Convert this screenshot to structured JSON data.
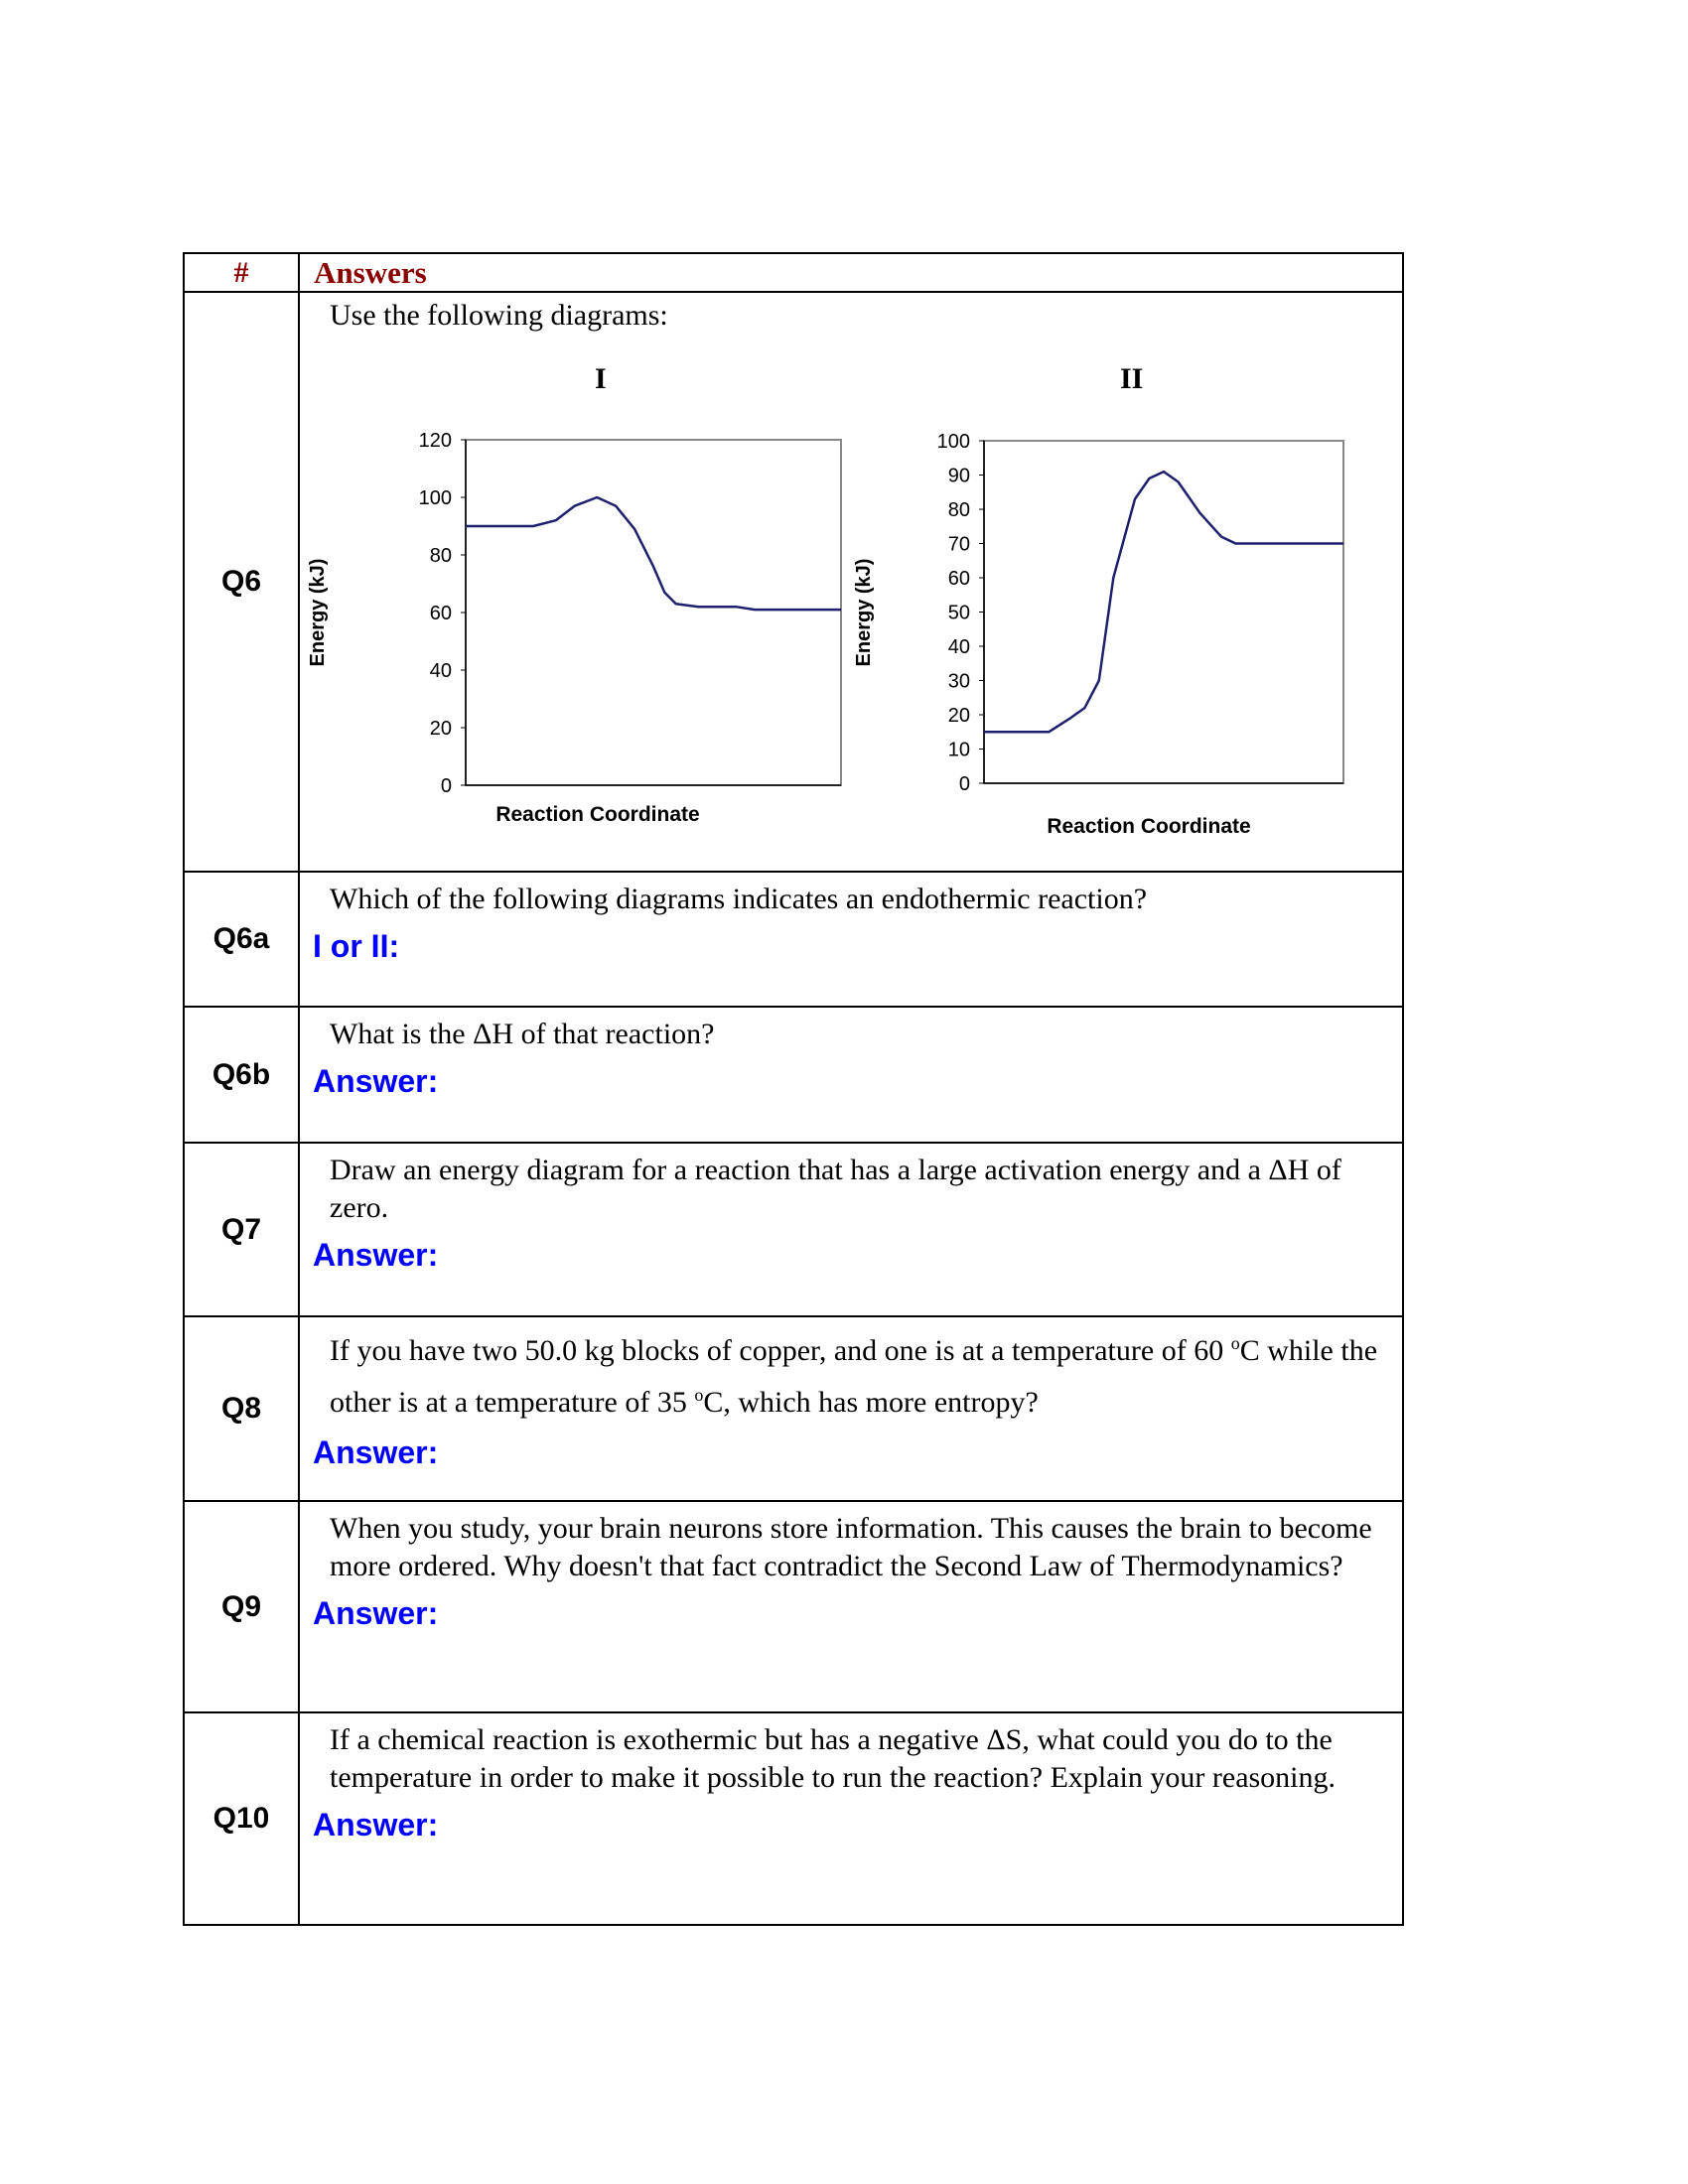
{
  "header": {
    "num_label": "#",
    "answers_label": "Answers"
  },
  "rows": [
    {
      "id": "Q6",
      "question": "Use the following diagrams:"
    },
    {
      "id": "Q6a",
      "question": "Which of the following diagrams indicates an endothermic reaction?",
      "answer_label": "I or II:"
    },
    {
      "id": "Q6b",
      "question": "What is the ΔH of that reaction?",
      "answer_label": "Answer:"
    },
    {
      "id": "Q7",
      "question": "Draw an energy diagram for a reaction that has a large activation energy and a ΔH of zero.",
      "answer_label": "Answer:"
    },
    {
      "id": "Q8",
      "question_parts": [
        "If you have two 50.0 kg blocks of copper, and one is at a temperature of 60 ",
        "o",
        "C while the other is at a temperature of 35 ",
        "o",
        "C, which has more entropy?"
      ],
      "answer_label": "Answer:"
    },
    {
      "id": "Q9",
      "question": "When you study, your brain neurons store information.  This causes the brain to become more ordered.  Why doesn't that fact contradict the Second Law of Thermodynamics?",
      "answer_label": "Answer:"
    },
    {
      "id": "Q10",
      "question": "If a chemical reaction is exothermic but has a negative ΔS, what could you do to the temperature  in order to make it possible to run the reaction? Explain your reasoning.",
      "answer_label": "Answer:"
    }
  ],
  "colors": {
    "header": "#8b0000",
    "answer": "#0000ff",
    "curve": "#1f1f6e"
  },
  "chart_data": [
    {
      "type": "line",
      "title": "I",
      "xlabel": "Reaction Coordinate",
      "ylabel": "Energy (kJ)",
      "ylim": [
        0,
        120
      ],
      "yticks": [
        0,
        20,
        40,
        60,
        80,
        100,
        120
      ],
      "x": [
        0,
        0.1,
        0.18,
        0.24,
        0.29,
        0.35,
        0.4,
        0.45,
        0.5,
        0.53,
        0.56,
        0.62,
        0.72,
        0.77,
        0.85,
        1
      ],
      "y": [
        90,
        90,
        90,
        92,
        97,
        100,
        97,
        89,
        76,
        67,
        63,
        62,
        62,
        61,
        61,
        61
      ],
      "grid": false
    },
    {
      "type": "line",
      "title": "II",
      "xlabel": "Reaction Coordinate",
      "ylabel": "Energy (kJ)",
      "ylim": [
        0,
        100
      ],
      "yticks": [
        0,
        10,
        20,
        30,
        40,
        50,
        60,
        70,
        80,
        90,
        100
      ],
      "x": [
        0,
        0.1,
        0.18,
        0.24,
        0.28,
        0.32,
        0.36,
        0.42,
        0.46,
        0.5,
        0.54,
        0.6,
        0.66,
        0.7,
        0.73,
        0.8,
        1
      ],
      "y": [
        15,
        15,
        15,
        19,
        22,
        30,
        60,
        83,
        89,
        91,
        88,
        79,
        72,
        70,
        70,
        70,
        70
      ],
      "grid": false
    }
  ]
}
